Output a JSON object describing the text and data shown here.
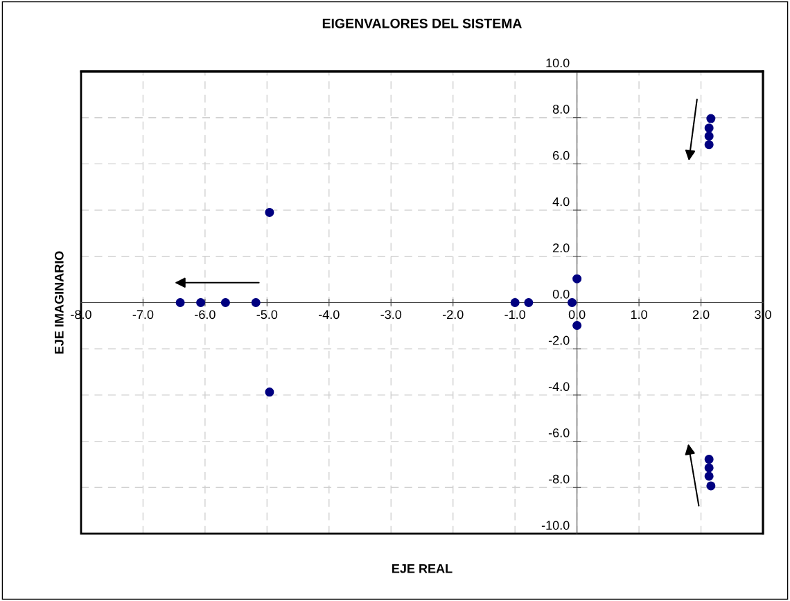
{
  "chart_data": {
    "type": "scatter",
    "title": "EIGENVALORES DEL SISTEMA",
    "xlabel": "EJE REAL",
    "ylabel": "EJE IMAGINARIO",
    "series": [
      {
        "color": "#000080",
        "x": [
          -6.4,
          -6.07,
          -5.67,
          -5.18,
          -4.96,
          -4.96,
          -1.0,
          -0.78,
          -0.08,
          0.0,
          0.0,
          2.16,
          2.13,
          2.13,
          2.13,
          2.13,
          2.13,
          2.13,
          2.16
        ],
        "values": [
          0.0,
          0.0,
          0.0,
          0.0,
          3.9,
          -3.87,
          0.0,
          0.0,
          0.0,
          1.03,
          -0.99,
          7.96,
          7.55,
          7.2,
          6.83,
          -6.78,
          -7.15,
          -7.51,
          -7.93
        ]
      }
    ],
    "marker": "circle",
    "grid": true,
    "xlim": [
      -8,
      3
    ],
    "ylim": [
      -10,
      10
    ],
    "xticks": [
      {
        "value": -8,
        "label": "-8.0"
      },
      {
        "value": -7,
        "label": "-7.0"
      },
      {
        "value": -6,
        "label": "-6.0"
      },
      {
        "value": -5,
        "label": "-5.0"
      },
      {
        "value": -4,
        "label": "-4.0"
      },
      {
        "value": -3,
        "label": "-3.0"
      },
      {
        "value": -2,
        "label": "-2.0"
      },
      {
        "value": -1,
        "label": "-1.0"
      },
      {
        "value": 0,
        "label": "0.0"
      },
      {
        "value": 1,
        "label": "1.0"
      },
      {
        "value": 2,
        "label": "2.0"
      },
      {
        "value": 3,
        "label": "3.0"
      }
    ],
    "yticks": [
      {
        "value": -10,
        "label": "-10.0"
      },
      {
        "value": -8,
        "label": "-8.0"
      },
      {
        "value": -6,
        "label": "-6.0"
      },
      {
        "value": -4,
        "label": "-4.0"
      },
      {
        "value": -2,
        "label": "-2.0"
      },
      {
        "value": 0,
        "label": "0.0"
      },
      {
        "value": 2,
        "label": "2.0"
      },
      {
        "value": 4,
        "label": "4.0"
      },
      {
        "value": 6,
        "label": "6.0"
      },
      {
        "value": 8,
        "label": "8.0"
      },
      {
        "value": 10,
        "label": "10.0"
      }
    ]
  }
}
